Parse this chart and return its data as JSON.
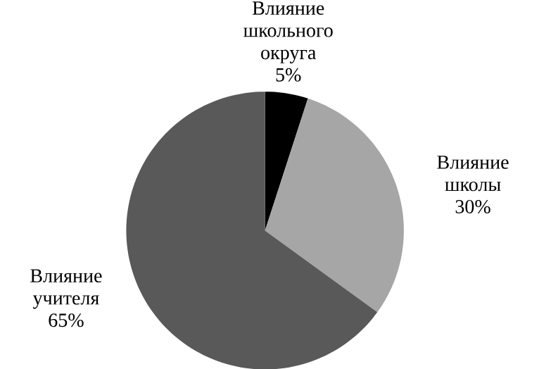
{
  "chart_data": {
    "type": "pie",
    "categories": [
      "Влияние школьного округа",
      "Влияние школы",
      "Влияние учителя"
    ],
    "values": [
      5,
      30,
      65
    ],
    "colors": [
      "#000000",
      "#a6a6a6",
      "#595959"
    ],
    "value_labels": [
      "5%",
      "30%",
      "65%"
    ]
  }
}
